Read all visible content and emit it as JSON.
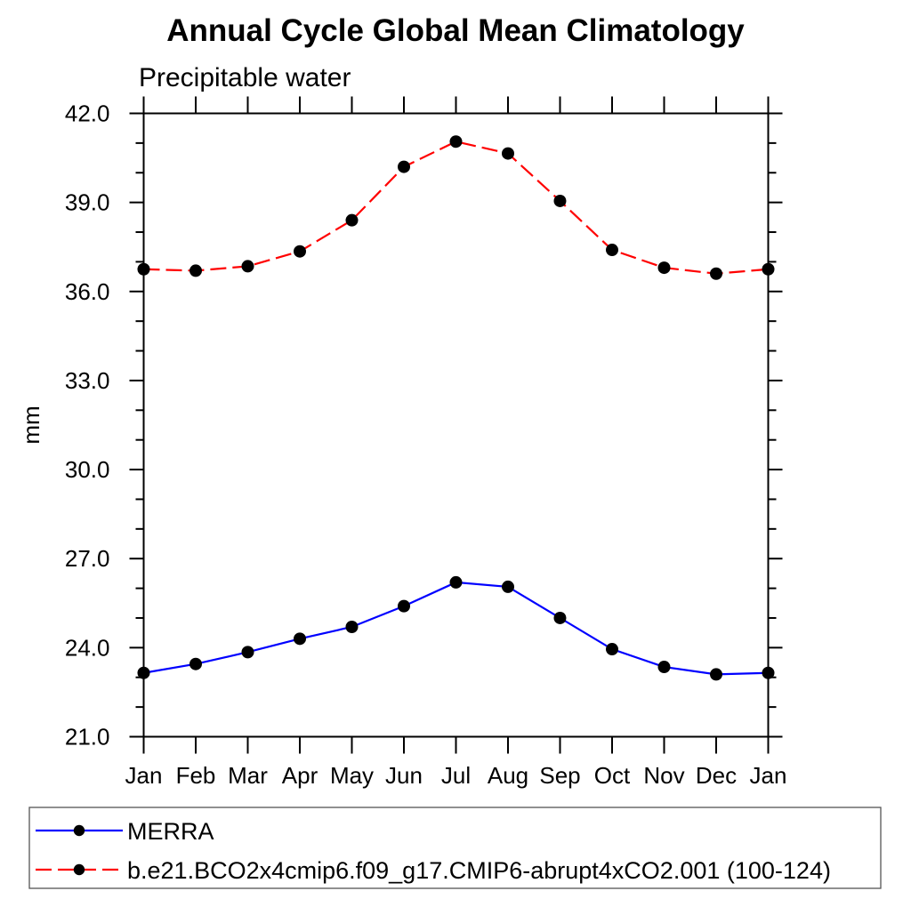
{
  "chart_data": {
    "type": "line",
    "title": "Annual Cycle Global Mean Climatology",
    "subtitle": "Precipitable water",
    "ylabel": "mm",
    "xlabel": "",
    "x_categories": [
      "Jan",
      "Feb",
      "Mar",
      "Apr",
      "May",
      "Jun",
      "Jul",
      "Aug",
      "Sep",
      "Oct",
      "Nov",
      "Dec",
      "Jan"
    ],
    "ylim": [
      21.0,
      42.0
    ],
    "ytick_major_interval": 3.0,
    "ytick_minor_interval": 1.0,
    "ytick_labels": [
      "21.0",
      "24.0",
      "27.0",
      "30.0",
      "33.0",
      "36.0",
      "39.0",
      "42.0"
    ],
    "grid": false,
    "legend_position": "bottom-outside",
    "marker": {
      "shape": "circle",
      "color": "#000000"
    },
    "axis_color": "#000000",
    "background_color": "#ffffff",
    "series": [
      {
        "name": "MERRA",
        "line_style": "solid",
        "color": "#0000ff",
        "values": [
          23.15,
          23.45,
          23.85,
          24.3,
          24.7,
          25.4,
          26.2,
          26.05,
          25.0,
          23.95,
          23.35,
          23.1,
          23.15
        ]
      },
      {
        "name": "b.e21.BCO2x4cmip6.f09_g17.CMIP6-abrupt4xCO2.001 (100-124)",
        "line_style": "dashed",
        "color": "#ff0000",
        "values": [
          36.75,
          36.7,
          36.85,
          37.35,
          38.4,
          40.2,
          41.05,
          40.65,
          39.05,
          37.4,
          36.8,
          36.6,
          36.75
        ]
      }
    ]
  }
}
